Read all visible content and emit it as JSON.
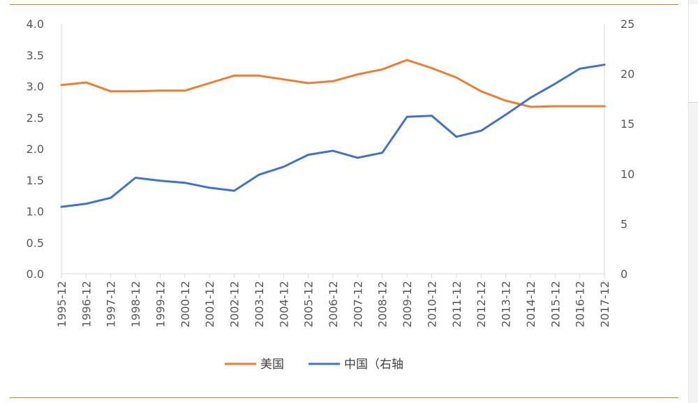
{
  "chart_data": {
    "type": "line",
    "title": "",
    "xlabel": "",
    "ylabel": "",
    "categories": [
      "1995-12",
      "1996-12",
      "1997-12",
      "1998-12",
      "1999-12",
      "2000-12",
      "2001-12",
      "2002-12",
      "2003-12",
      "2004-12",
      "2005-12",
      "2006-12",
      "2007-12",
      "2008-12",
      "2009-12",
      "2010-12",
      "2011-12",
      "2012-12",
      "2013-12",
      "2014-12",
      "2015-12",
      "2016-12",
      "2017-12"
    ],
    "ylim": [
      0,
      4.0
    ],
    "y_ticks": [
      "0.0",
      "0.5",
      "1.0",
      "1.5",
      "2.0",
      "2.5",
      "3.0",
      "3.5",
      "4.0"
    ],
    "y2lim": [
      0,
      25
    ],
    "y2_ticks": [
      "0",
      "5",
      "10",
      "15",
      "20",
      "25"
    ],
    "grid": false,
    "legend_position": "bottom",
    "series": [
      {
        "name": "美国",
        "axis": "left",
        "color": "#ed7d31",
        "values": [
          3.02,
          3.06,
          2.92,
          2.92,
          2.93,
          2.93,
          3.05,
          3.17,
          3.17,
          3.11,
          3.05,
          3.08,
          3.19,
          3.27,
          3.42,
          3.29,
          3.14,
          2.92,
          2.77,
          2.67,
          2.68,
          2.68,
          2.68
        ]
      },
      {
        "name": "中国（右轴",
        "axis": "right",
        "color": "#4472c4",
        "values": [
          6.7,
          7.0,
          7.6,
          9.6,
          9.3,
          9.1,
          8.6,
          8.3,
          9.9,
          10.7,
          11.9,
          12.3,
          11.6,
          12.1,
          15.7,
          15.8,
          13.7,
          14.3,
          15.9,
          17.6,
          19.0,
          20.5,
          20.9
        ]
      }
    ]
  }
}
